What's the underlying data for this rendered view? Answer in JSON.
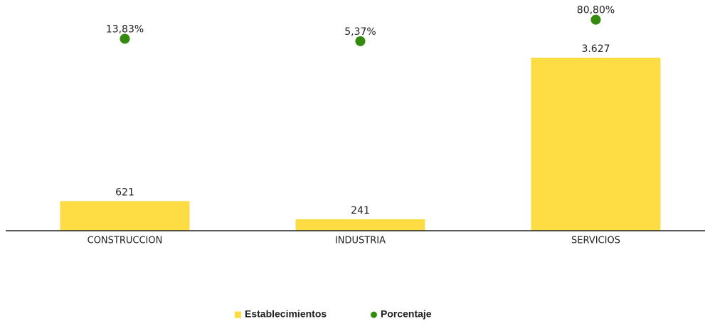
{
  "chart_data": {
    "type": "bar",
    "categories": [
      "CONSTRUCCION",
      "INDUSTRIA",
      "SERVICIOS"
    ],
    "series": [
      {
        "name": "Establecimientos",
        "type": "bar",
        "color": "#fddc44",
        "values": [
          621,
          241,
          3627
        ],
        "value_labels": [
          "621",
          "241",
          "3.627"
        ]
      },
      {
        "name": "Porcentaje",
        "type": "scatter",
        "axis": "y2",
        "color": "#338a0c",
        "values": [
          13.83,
          5.37,
          80.8
        ],
        "value_labels": [
          "13,83%",
          "5,37%",
          "80,80%"
        ]
      }
    ],
    "ylim": [
      0,
      4000
    ],
    "y2lim": [
      0,
      100
    ],
    "legend": "bottom"
  }
}
